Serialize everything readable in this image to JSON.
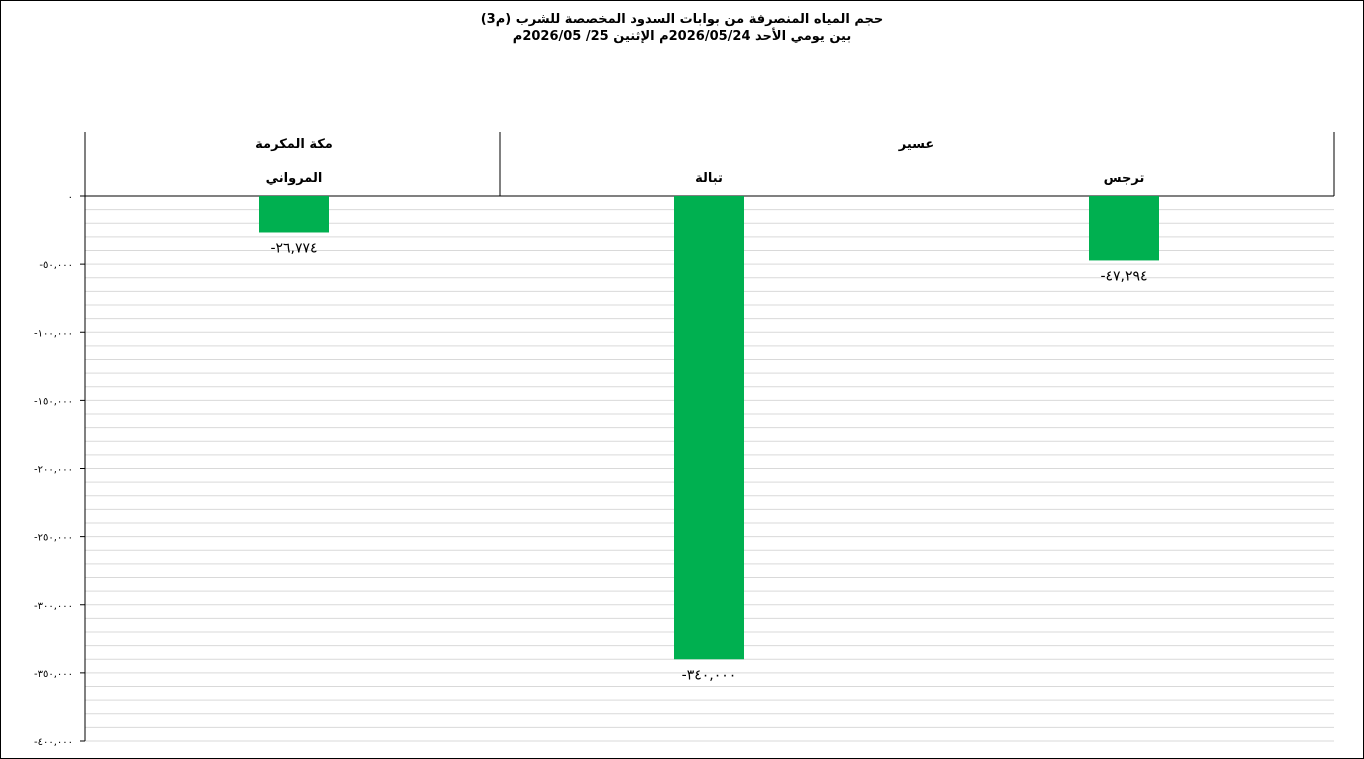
{
  "chart_data": {
    "type": "bar",
    "title": "حجم المياه المنصرفة من بوابات السدود المخصصة للشرب (م3)",
    "subtitle": "بين يومي الأحد 2026/05/24م الإثنين 25/ 2026/05م",
    "regions": [
      {
        "name": "مكة المكرمة",
        "categories": [
          "المرواني"
        ]
      },
      {
        "name": "عسير",
        "categories": [
          "تبالة",
          "ترجس"
        ]
      }
    ],
    "categories": [
      "المرواني",
      "تبالة",
      "ترجس"
    ],
    "values": [
      -26774,
      -340000,
      -47294
    ],
    "data_labels": [
      "-٢٦,٧٧٤",
      "-٣٤٠,٠٠٠",
      "-٤٧,٢٩٤"
    ],
    "ylim": [
      -400000,
      0
    ],
    "y_ticks": [
      0,
      -50000,
      -100000,
      -150000,
      -200000,
      -250000,
      -300000,
      -350000,
      -400000
    ],
    "y_tick_labels": [
      "٠",
      "-٥٠,٠٠٠",
      "-١٠٠,٠٠٠",
      "-١٥٠,٠٠٠",
      "-٢٠٠,٠٠٠",
      "-٢٥٠,٠٠٠",
      "-٣٠٠,٠٠٠",
      "-٣٥٠,٠٠٠",
      "-٤٠٠,٠٠٠"
    ],
    "minor_grid_step": 10000,
    "grid": true,
    "bar_color": "#00b050",
    "grid_color": "#d9d9d9"
  }
}
